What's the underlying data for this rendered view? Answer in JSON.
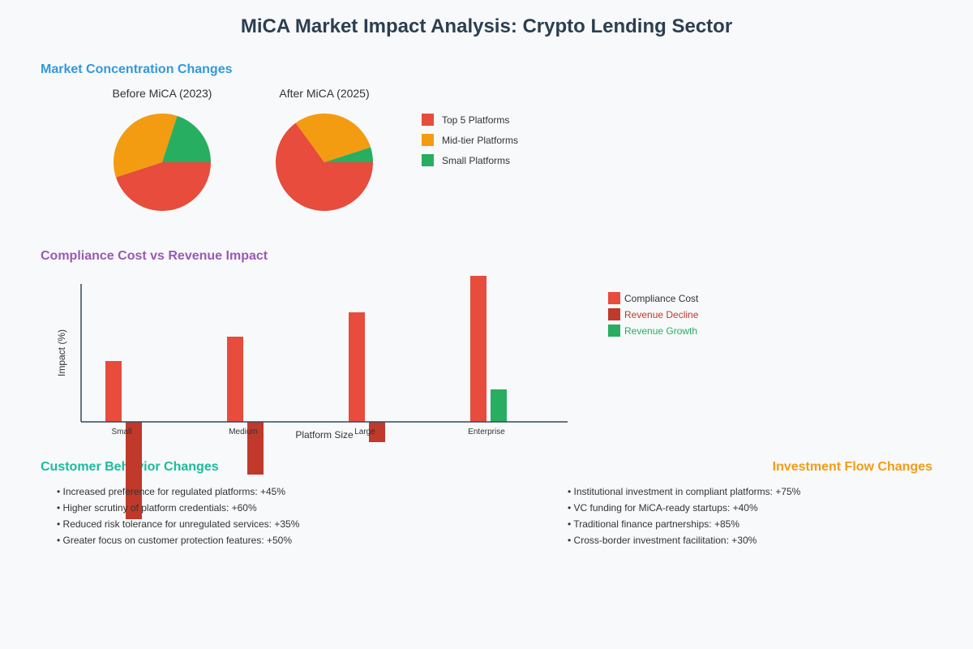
{
  "title": "MiCA Market Impact Analysis: Crypto Lending Sector",
  "colors": {
    "title": "#2c3e50",
    "concentration_heading": "#3498db",
    "compliance_heading": "#9b59b6",
    "customer_heading": "#1abc9c",
    "investment_heading": "#f39c12",
    "top5": "#e74c3c",
    "midtier": "#f39c12",
    "small": "#27ae60",
    "compliance_cost": "#e74c3c",
    "revenue_decline": "#c0392b",
    "revenue_growth": "#27ae60",
    "text": "#333333",
    "axis": "#34495e"
  },
  "sections": {
    "market_concentration": "Market Concentration Changes",
    "compliance": "Compliance Cost vs Revenue Impact",
    "customer": "Customer Behavior Changes",
    "investment": "Investment Flow Changes"
  },
  "chart_data": [
    {
      "type": "pie",
      "title": "Before MiCA (2023)",
      "categories": [
        "Top 5 Platforms",
        "Mid-tier Platforms",
        "Small Platforms"
      ],
      "values": [
        45,
        35,
        20
      ]
    },
    {
      "type": "pie",
      "title": "After MiCA (2025)",
      "categories": [
        "Top 5 Platforms",
        "Mid-tier Platforms",
        "Small Platforms"
      ],
      "values": [
        65,
        30,
        5
      ]
    },
    {
      "type": "bar",
      "title": "Compliance Cost vs Revenue Impact",
      "xlabel": "Platform Size",
      "ylabel": "Impact (%)",
      "categories": [
        "Small",
        "Medium",
        "Large",
        "Enterprise"
      ],
      "series": [
        {
          "name": "Compliance Cost",
          "values": [
            15,
            21,
            27,
            36
          ]
        },
        {
          "name": "Revenue Decline",
          "values": [
            -24,
            -13,
            -5,
            0
          ]
        },
        {
          "name": "Revenue Growth",
          "values": [
            0,
            0,
            0,
            8
          ]
        }
      ]
    }
  ],
  "legend_pie": [
    "Top 5 Platforms",
    "Mid-tier Platforms",
    "Small Platforms"
  ],
  "legend_bar": [
    "Compliance Cost",
    "Revenue Decline",
    "Revenue Growth"
  ],
  "customer_items": [
    "• Increased preference for regulated platforms: +45%",
    "• Higher scrutiny of platform credentials: +60%",
    "• Reduced risk tolerance for unregulated services: +35%",
    "• Greater focus on customer protection features: +50%"
  ],
  "investment_items": [
    "• Institutional investment in compliant platforms: +75%",
    "• VC funding for MiCA-ready startups: +40%",
    "• Traditional finance partnerships: +85%",
    "• Cross-border investment facilitation: +30%"
  ]
}
